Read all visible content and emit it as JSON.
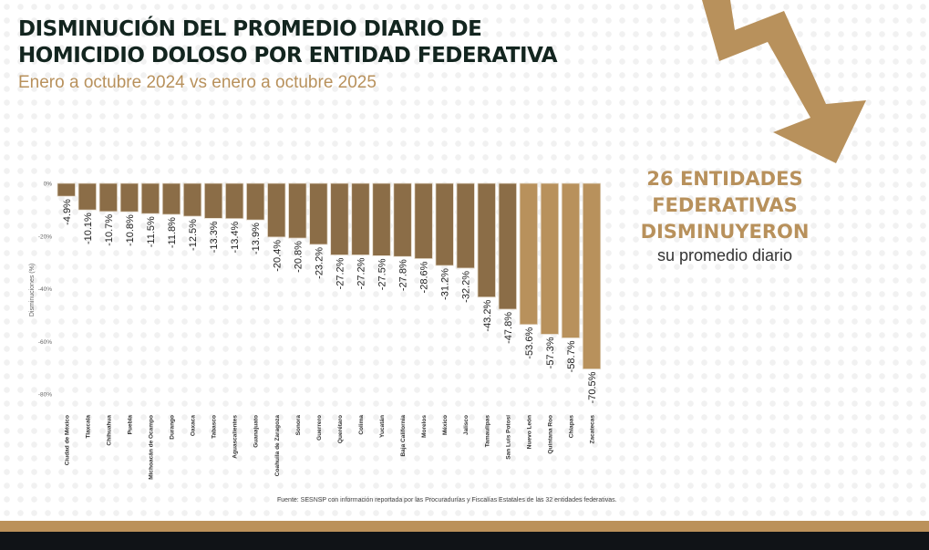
{
  "title_line1": "DISMINUCIÓN DEL PROMEDIO DIARIO DE",
  "title_line2": "HOMICIDIO DOLOSO POR ENTIDAD FEDERATIVA",
  "subtitle": "Enero a octubre 2024 vs enero a octubre 2025",
  "callout": {
    "line1": "26 ENTIDADES",
    "line2": "FEDERATIVAS",
    "line3": "DISMINUYERON",
    "line4": "su promedio diario"
  },
  "source": "Fuente: SESNSP con información reportada por las Procuradurías y Fiscalías Estatales de las 32 entidades federativas.",
  "colors": {
    "dark_bar": "#8b6d47",
    "light_bar": "#b8915c",
    "accent": "#bb915a"
  },
  "chart_data": {
    "type": "bar",
    "title": "Disminución del promedio diario de homicidio doloso por entidad federativa",
    "ylabel": "Disminuciones (%)",
    "ylim": [
      -80,
      0
    ],
    "yticks": [
      "0%",
      "-20%",
      "-40%",
      "-60%",
      "-80%"
    ],
    "ytick_values": [
      0,
      -20,
      -40,
      -60,
      -80
    ],
    "categories": [
      "Ciudad de México",
      "Tlaxcala",
      "Chihuahua",
      "Puebla",
      "Michoacán de Ocampo",
      "Durango",
      "Oaxaca",
      "Tabasco",
      "Aguascalientes",
      "Guanajuato",
      "Coahuila de Zaragoza",
      "Sonora",
      "Guerrero",
      "Querétaro",
      "Colima",
      "Yucatán",
      "Baja California",
      "Morelos",
      "México",
      "Jalisco",
      "Tamaulipas",
      "San Luis Potosí",
      "Nuevo León",
      "Quintana Roo",
      "Chiapas",
      "Zacatecas"
    ],
    "values": [
      -4.9,
      -10.1,
      -10.7,
      -10.8,
      -11.5,
      -11.8,
      -12.5,
      -13.3,
      -13.4,
      -13.9,
      -20.4,
      -20.8,
      -23.2,
      -27.2,
      -27.2,
      -27.5,
      -27.8,
      -28.6,
      -31.2,
      -32.2,
      -43.2,
      -47.8,
      -53.6,
      -57.3,
      -58.7,
      -70.5
    ],
    "labels": [
      "-4.9%",
      "-10.1%",
      "-10.7%",
      "-10.8%",
      "-11.5%",
      "-11.8%",
      "-12.5%",
      "-13.3%",
      "-13.4%",
      "-13.9%",
      "-20.4%",
      "-20.8%",
      "-23.2%",
      "-27.2%",
      "-27.2%",
      "-27.5%",
      "-27.8%",
      "-28.6%",
      "-31.2%",
      "-32.2%",
      "-43.2%",
      "-47.8%",
      "-53.6%",
      "-57.3%",
      "-58.7%",
      "-70.5%"
    ],
    "highlight_last": 4,
    "grid": false
  }
}
